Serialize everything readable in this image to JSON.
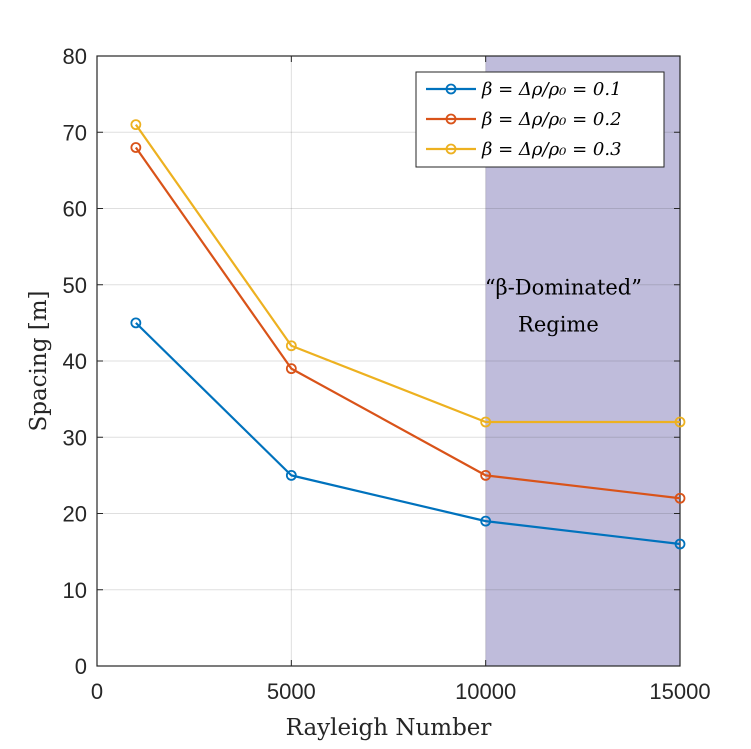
{
  "chart_data": {
    "type": "line",
    "title": "",
    "xlabel": "Rayleigh Number",
    "ylabel": "Spacing [m]",
    "xlim": [
      0,
      15000
    ],
    "ylim": [
      0,
      80
    ],
    "x_ticks": [
      0,
      5000,
      10000,
      15000
    ],
    "y_ticks": [
      0,
      10,
      20,
      30,
      40,
      50,
      60,
      70,
      80
    ],
    "grid": true,
    "legend_position": "top-right",
    "x": [
      1000,
      5000,
      10000,
      15000
    ],
    "series": [
      {
        "name": "β = Δρ/ρ₀ = 0.1",
        "color": "#0072BD",
        "values": [
          45,
          25,
          19,
          16
        ]
      },
      {
        "name": "β = Δρ/ρ₀ = 0.2",
        "color": "#D95319",
        "values": [
          68,
          39,
          25,
          22
        ]
      },
      {
        "name": "β = Δρ/ρ₀ = 0.3",
        "color": "#EDB120",
        "values": [
          71,
          42,
          32,
          32
        ]
      }
    ],
    "shaded_region": {
      "x_from": 10000,
      "x_to": 15000,
      "color": "#BFBCDB"
    },
    "annotation": {
      "line1": "“β-Dominated”",
      "line2": "Regime",
      "x": 12000,
      "y": 46
    }
  }
}
